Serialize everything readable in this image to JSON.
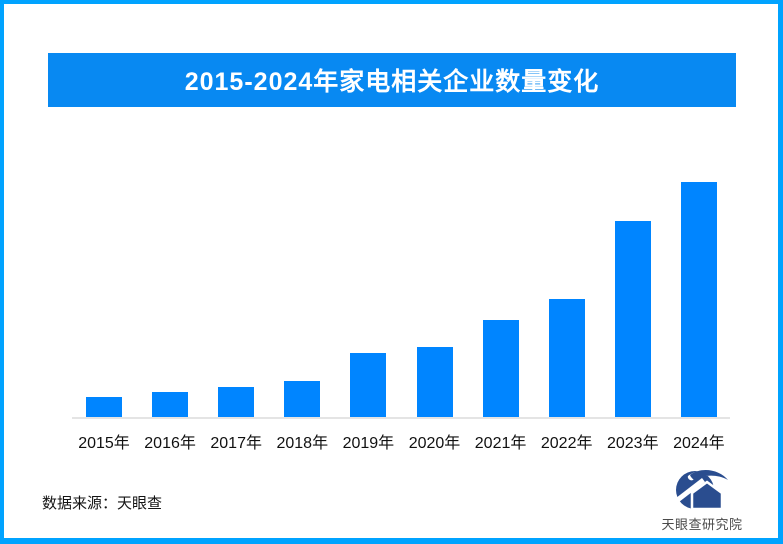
{
  "page": {
    "border_color": "#00A3FF",
    "background": "#FFFFFF"
  },
  "banner": {
    "title": "2015-2024年家电相关企业数量变化",
    "bg_color": "#0889F2",
    "text_color": "#FFFFFF"
  },
  "chart_data": {
    "type": "bar",
    "title": "2015-2024年家电相关企业数量变化",
    "categories": [
      "2015年",
      "2016年",
      "2017年",
      "2018年",
      "2019年",
      "2020年",
      "2021年",
      "2022年",
      "2023年",
      "2024年"
    ],
    "values": [
      20,
      25,
      30,
      36,
      64,
      70,
      97,
      118,
      196,
      235
    ],
    "value_unit": "relative height (no y-axis or data labels shown in chart)",
    "xlabel": "",
    "ylabel": "",
    "ylim": [
      0,
      257
    ],
    "grid": false,
    "legend": false,
    "bar_color": "#0085FF",
    "axis_line_color": "#E4E4E4",
    "label_color": "#111111"
  },
  "footer": {
    "source_label": "数据来源：天眼查",
    "logo_text": "天眼查研究院",
    "logo_color": "#2A4D8F"
  }
}
